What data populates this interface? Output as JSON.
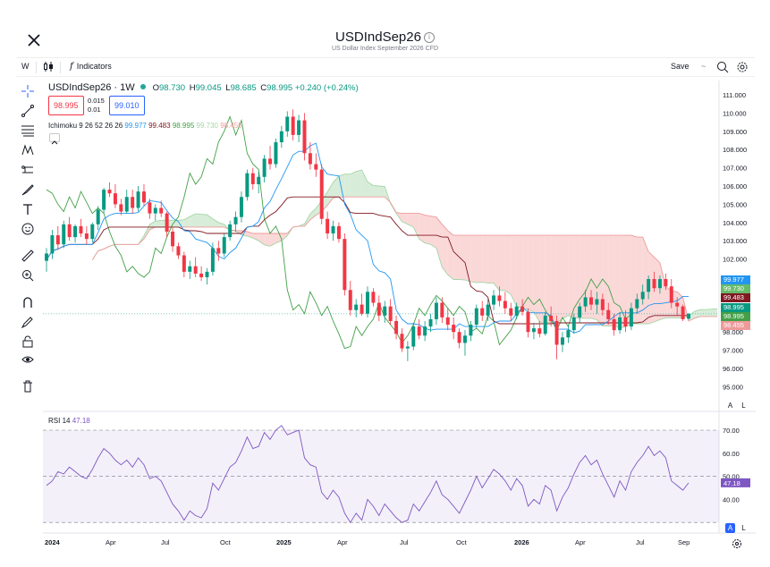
{
  "header": {
    "title": "USDIndSep26",
    "subtitle": "US Dollar Index September 2026 CFD",
    "info_glyph": "i"
  },
  "toolbar": {
    "interval": "W",
    "indicators_label": "Indicators",
    "save_label": "Save",
    "save_caret": "~"
  },
  "legend": {
    "symbol": "USDIndSep26 · 1W",
    "open_label": "O",
    "open": "98.730",
    "high_label": "H",
    "high": "99.045",
    "low_label": "L",
    "low": "98.685",
    "close_label": "C",
    "close": "98.995",
    "change": "+0.240 (+0.24%)",
    "sell_price": "98.995",
    "buy_price": "99.010",
    "spread_top": "0.015",
    "spread_bottom": "0.01"
  },
  "ichimoku": {
    "label": "Ichimoku 9 26 52 26 26",
    "values": [
      "99.977",
      "99.483",
      "98.995",
      "99.730",
      "98.455"
    ],
    "colors": [
      "#2196f3",
      "#801922",
      "#43a047",
      "#a5d6a7",
      "#ef9a9a"
    ]
  },
  "price_scale": {
    "ticks": [
      "111.000",
      "110.000",
      "109.000",
      "108.000",
      "107.000",
      "106.000",
      "105.000",
      "104.000",
      "103.000",
      "102.000",
      "101.000",
      "100.000",
      "99.000",
      "98.000",
      "97.000",
      "96.000",
      "95.000"
    ],
    "tags": [
      {
        "value": "99.977",
        "color": "#2196f3"
      },
      {
        "value": "99.730",
        "color": "#66bb6a"
      },
      {
        "value": "99.483",
        "color": "#801922"
      },
      {
        "value": "98.995",
        "color": "#089981"
      },
      {
        "value": "98.995",
        "color": "#43a047"
      },
      {
        "value": "98.455",
        "color": "#ef9a9a"
      }
    ],
    "auto_label": "A",
    "log_label": "L"
  },
  "rsi": {
    "label": "RSI",
    "length": "14",
    "value": "47.18",
    "ticks": [
      "70.00",
      "60.00",
      "50.00",
      "40.00"
    ],
    "color": "#7e57c2"
  },
  "time_axis": [
    "2024",
    "Apr",
    "Jul",
    "Oct",
    "2025",
    "Apr",
    "Jul",
    "Oct",
    "2026",
    "Apr",
    "Jul",
    "Sep"
  ],
  "time_axis_bold": [
    true,
    false,
    false,
    false,
    true,
    false,
    false,
    false,
    true,
    false,
    false,
    false
  ],
  "colors": {
    "up": "#089981",
    "down": "#f23645",
    "cloud_bull": "#c8e6c9",
    "cloud_bear": "#f8c7c7"
  },
  "chart_data": {
    "type": "candlestick",
    "title": "USDIndSep26 · 1W",
    "ylim": [
      95.0,
      111.5
    ],
    "candles": [
      [
        101.9,
        102.6,
        101.3,
        102.3
      ],
      [
        102.3,
        103.6,
        102.0,
        103.3
      ],
      [
        103.3,
        103.8,
        102.5,
        102.8
      ],
      [
        102.8,
        104.1,
        102.6,
        103.9
      ],
      [
        103.9,
        104.3,
        103.0,
        103.2
      ],
      [
        103.2,
        103.9,
        102.9,
        103.8
      ],
      [
        103.8,
        104.2,
        103.2,
        103.4
      ],
      [
        103.4,
        103.8,
        102.8,
        103.1
      ],
      [
        103.1,
        104.0,
        102.9,
        103.9
      ],
      [
        103.9,
        104.9,
        103.6,
        104.7
      ],
      [
        104.7,
        105.9,
        104.5,
        105.8
      ],
      [
        105.8,
        106.2,
        105.4,
        105.6
      ],
      [
        105.6,
        106.1,
        104.8,
        105.0
      ],
      [
        105.0,
        105.3,
        104.4,
        104.6
      ],
      [
        104.6,
        105.8,
        104.5,
        105.4
      ],
      [
        105.4,
        105.8,
        104.5,
        104.8
      ],
      [
        104.8,
        106.0,
        104.6,
        105.7
      ],
      [
        105.7,
        106.1,
        104.9,
        105.1
      ],
      [
        105.1,
        105.3,
        104.2,
        104.5
      ],
      [
        104.5,
        105.0,
        104.1,
        104.8
      ],
      [
        104.8,
        105.2,
        104.3,
        104.5
      ],
      [
        104.5,
        104.6,
        103.2,
        103.5
      ],
      [
        103.5,
        103.7,
        102.4,
        102.7
      ],
      [
        102.7,
        102.9,
        102.0,
        102.2
      ],
      [
        102.2,
        102.4,
        101.0,
        101.3
      ],
      [
        101.3,
        101.9,
        100.9,
        101.6
      ],
      [
        101.6,
        102.1,
        101.0,
        101.2
      ],
      [
        101.2,
        101.6,
        100.8,
        101.0
      ],
      [
        101.0,
        101.5,
        100.6,
        101.3
      ],
      [
        101.3,
        102.9,
        101.1,
        102.6
      ],
      [
        102.6,
        103.0,
        101.9,
        102.3
      ],
      [
        102.3,
        103.4,
        102.1,
        103.2
      ],
      [
        103.2,
        104.1,
        103.0,
        103.9
      ],
      [
        103.9,
        104.6,
        103.5,
        104.3
      ],
      [
        104.3,
        105.7,
        104.0,
        105.4
      ],
      [
        105.4,
        106.9,
        105.2,
        106.7
      ],
      [
        106.7,
        107.0,
        105.8,
        106.1
      ],
      [
        106.1,
        106.8,
        105.6,
        106.5
      ],
      [
        106.5,
        107.7,
        106.2,
        107.5
      ],
      [
        107.5,
        108.2,
        106.9,
        107.2
      ],
      [
        107.2,
        108.6,
        107.0,
        108.4
      ],
      [
        108.4,
        109.3,
        108.1,
        109.0
      ],
      [
        109.0,
        110.1,
        108.7,
        109.8
      ],
      [
        109.8,
        110.2,
        108.5,
        108.8
      ],
      [
        108.8,
        109.9,
        108.4,
        109.6
      ],
      [
        109.6,
        110.0,
        107.4,
        107.8
      ],
      [
        107.8,
        108.4,
        106.9,
        107.2
      ],
      [
        107.2,
        107.8,
        106.5,
        106.9
      ],
      [
        106.9,
        107.2,
        103.9,
        104.2
      ],
      [
        104.2,
        104.6,
        103.1,
        103.4
      ],
      [
        103.4,
        104.1,
        103.0,
        103.8
      ],
      [
        103.8,
        104.0,
        102.9,
        103.1
      ],
      [
        103.1,
        103.4,
        100.0,
        100.3
      ],
      [
        100.3,
        100.8,
        98.9,
        99.2
      ],
      [
        99.2,
        99.8,
        98.8,
        99.5
      ],
      [
        99.5,
        100.1,
        98.9,
        99.0
      ],
      [
        99.0,
        100.5,
        98.8,
        100.2
      ],
      [
        100.2,
        100.4,
        99.4,
        99.6
      ],
      [
        99.6,
        100.0,
        98.6,
        98.9
      ],
      [
        98.9,
        99.7,
        98.5,
        99.4
      ],
      [
        99.4,
        99.8,
        98.4,
        98.6
      ],
      [
        98.6,
        98.9,
        97.6,
        97.9
      ],
      [
        97.9,
        98.2,
        96.9,
        97.1
      ],
      [
        97.1,
        97.5,
        96.4,
        97.2
      ],
      [
        97.2,
        98.5,
        97.0,
        98.3
      ],
      [
        98.3,
        98.7,
        97.6,
        97.8
      ],
      [
        97.8,
        98.6,
        97.5,
        98.3
      ],
      [
        98.3,
        99.0,
        98.0,
        98.7
      ],
      [
        98.7,
        99.9,
        98.4,
        99.6
      ],
      [
        99.6,
        99.9,
        98.5,
        98.8
      ],
      [
        98.8,
        99.3,
        98.1,
        98.4
      ],
      [
        98.4,
        98.8,
        97.6,
        98.0
      ],
      [
        98.0,
        98.2,
        97.1,
        97.4
      ],
      [
        97.4,
        98.1,
        96.7,
        97.8
      ],
      [
        97.8,
        98.6,
        97.5,
        98.4
      ],
      [
        98.4,
        99.5,
        98.2,
        99.3
      ],
      [
        99.3,
        99.7,
        98.6,
        98.9
      ],
      [
        98.9,
        99.8,
        98.6,
        99.5
      ],
      [
        99.5,
        100.3,
        99.2,
        100.0
      ],
      [
        100.0,
        100.5,
        99.4,
        99.7
      ],
      [
        99.7,
        100.2,
        99.0,
        99.3
      ],
      [
        99.3,
        99.6,
        98.6,
        98.9
      ],
      [
        98.9,
        99.6,
        98.7,
        99.4
      ],
      [
        99.4,
        99.8,
        98.9,
        99.1
      ],
      [
        99.1,
        99.3,
        97.7,
        98.0
      ],
      [
        98.0,
        98.5,
        97.6,
        98.2
      ],
      [
        98.2,
        98.6,
        97.7,
        97.9
      ],
      [
        97.9,
        99.1,
        97.8,
        98.9
      ],
      [
        98.9,
        99.4,
        98.3,
        98.6
      ],
      [
        98.6,
        98.9,
        96.5,
        97.3
      ],
      [
        97.3,
        98.0,
        96.9,
        97.7
      ],
      [
        97.7,
        98.4,
        97.4,
        98.1
      ],
      [
        98.1,
        99.0,
        97.9,
        98.8
      ],
      [
        98.8,
        99.6,
        98.5,
        99.4
      ],
      [
        99.4,
        100.3,
        99.1,
        99.9
      ],
      [
        99.9,
        100.3,
        99.2,
        99.5
      ],
      [
        99.5,
        100.2,
        99.0,
        99.8
      ],
      [
        99.8,
        100.1,
        98.9,
        99.2
      ],
      [
        99.2,
        99.6,
        98.4,
        98.7
      ],
      [
        98.7,
        99.0,
        97.8,
        98.1
      ],
      [
        98.1,
        99.1,
        97.9,
        98.8
      ],
      [
        98.8,
        99.2,
        98.0,
        98.3
      ],
      [
        98.3,
        99.6,
        98.1,
        99.3
      ],
      [
        99.3,
        100.1,
        99.0,
        99.8
      ],
      [
        99.8,
        100.6,
        99.5,
        100.2
      ],
      [
        100.2,
        101.1,
        99.8,
        100.9
      ],
      [
        100.9,
        101.3,
        100.2,
        100.4
      ],
      [
        100.4,
        101.1,
        100.1,
        100.9
      ],
      [
        100.9,
        101.2,
        100.3,
        100.5
      ],
      [
        100.5,
        100.9,
        99.3,
        99.6
      ],
      [
        99.6,
        99.9,
        98.9,
        99.4
      ],
      [
        99.4,
        99.5,
        98.6,
        98.7
      ],
      [
        98.73,
        99.045,
        98.685,
        98.995
      ]
    ],
    "rsi_values": [
      46,
      48,
      52,
      51,
      54,
      52,
      50,
      49,
      53,
      58,
      62,
      60,
      57,
      55,
      57,
      54,
      58,
      55,
      49,
      50,
      48,
      43,
      38,
      35,
      31,
      35,
      33,
      32,
      36,
      47,
      44,
      49,
      54,
      56,
      61,
      67,
      62,
      63,
      69,
      66,
      70,
      72,
      68,
      69,
      70,
      58,
      55,
      54,
      43,
      40,
      44,
      41,
      34,
      30,
      34,
      31,
      40,
      37,
      33,
      38,
      35,
      32,
      30,
      31,
      38,
      35,
      39,
      43,
      48,
      42,
      40,
      37,
      34,
      39,
      44,
      50,
      45,
      49,
      53,
      51,
      48,
      44,
      49,
      46,
      37,
      40,
      38,
      46,
      44,
      35,
      41,
      45,
      51,
      56,
      59,
      55,
      57,
      51,
      46,
      41,
      48,
      44,
      52,
      56,
      59,
      63,
      59,
      61,
      58,
      48,
      46,
      44,
      47.18
    ]
  }
}
